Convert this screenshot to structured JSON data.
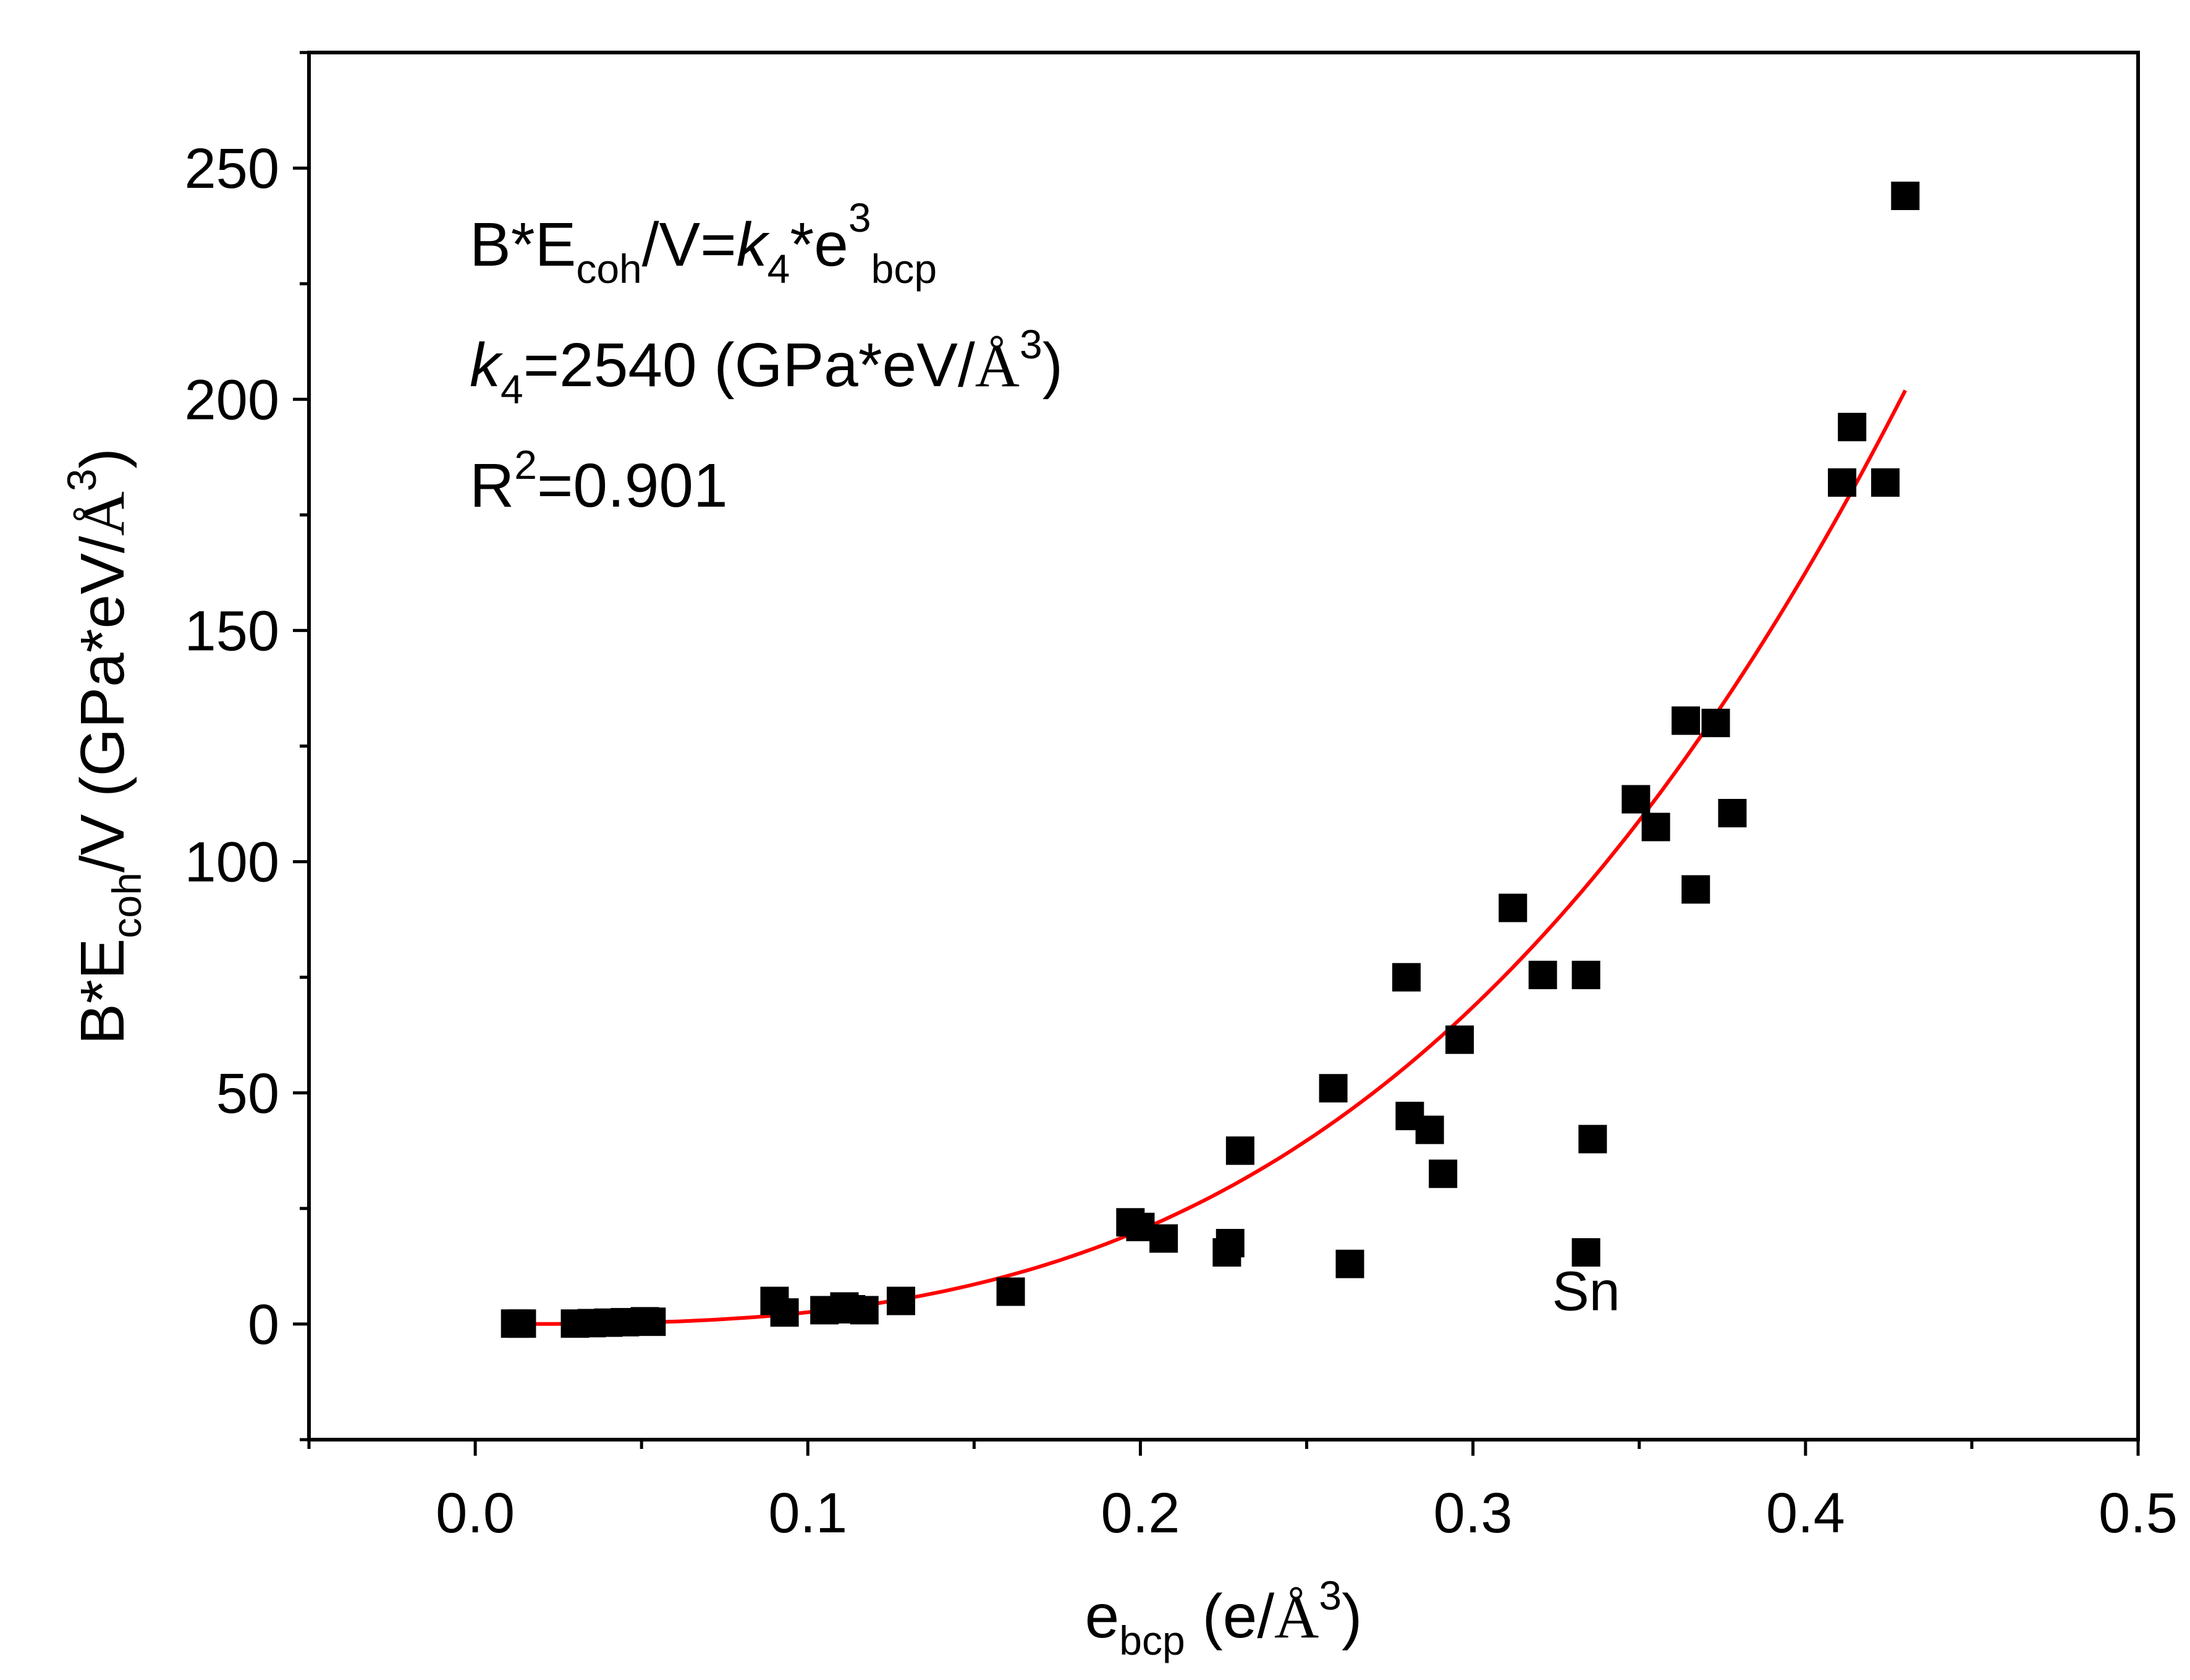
{
  "chart_data": {
    "type": "scatter",
    "title": "",
    "xlabel": {
      "main": "e",
      "sub": "bcp",
      "unit_open": " (e/",
      "angstrom": "Å",
      "sup": "3",
      "unit_close": ")"
    },
    "ylabel": {
      "main": "B*E",
      "sub": "coh",
      "mid": "/V (GPa*eV/",
      "angstrom": "Å",
      "sup": "3",
      "close": ")"
    },
    "xlim": [
      -0.05,
      0.5
    ],
    "ylim": [
      -25,
      275
    ],
    "x_ticks": [
      0.0,
      0.1,
      0.2,
      0.3,
      0.4,
      0.5
    ],
    "x_tick_labels": [
      "0.0",
      "0.1",
      "0.2",
      "0.3",
      "0.4",
      "0.5"
    ],
    "x_minor_ticks": [
      -0.05,
      0.05,
      0.15,
      0.25,
      0.35,
      0.45
    ],
    "y_ticks": [
      0,
      50,
      100,
      150,
      200,
      250
    ],
    "y_tick_labels": [
      "0",
      "50",
      "100",
      "150",
      "200",
      "250"
    ],
    "y_minor_ticks": [
      -25,
      25,
      75,
      125,
      175,
      225,
      275
    ],
    "grid": false,
    "series": [
      {
        "name": "data",
        "marker": "square",
        "color": "#000000",
        "points": [
          [
            0.012,
            0.1
          ],
          [
            0.014,
            0.1
          ],
          [
            0.03,
            0.1
          ],
          [
            0.035,
            0.2
          ],
          [
            0.04,
            0.3
          ],
          [
            0.045,
            0.4
          ],
          [
            0.051,
            0.6
          ],
          [
            0.053,
            0.5
          ],
          [
            0.09,
            5.0
          ],
          [
            0.093,
            2.5
          ],
          [
            0.105,
            3.0
          ],
          [
            0.111,
            3.8
          ],
          [
            0.113,
            3.2
          ],
          [
            0.117,
            3.0
          ],
          [
            0.128,
            5.0
          ],
          [
            0.161,
            7.0
          ],
          [
            0.197,
            22.0
          ],
          [
            0.2,
            21.0
          ],
          [
            0.207,
            18.5
          ],
          [
            0.226,
            15.5
          ],
          [
            0.227,
            17.5
          ],
          [
            0.23,
            37.5
          ],
          [
            0.258,
            51.0
          ],
          [
            0.263,
            13.0
          ],
          [
            0.28,
            75.0
          ],
          [
            0.281,
            45.0
          ],
          [
            0.287,
            42.0
          ],
          [
            0.291,
            32.5
          ],
          [
            0.296,
            61.5
          ],
          [
            0.312,
            90.0
          ],
          [
            0.321,
            75.5
          ],
          [
            0.334,
            75.5
          ],
          [
            0.334,
            15.5
          ],
          [
            0.336,
            40.0
          ],
          [
            0.349,
            113.5
          ],
          [
            0.355,
            107.5
          ],
          [
            0.364,
            130.5
          ],
          [
            0.367,
            94.0
          ],
          [
            0.373,
            130.0
          ],
          [
            0.378,
            110.5
          ],
          [
            0.411,
            182.0
          ],
          [
            0.414,
            194.0
          ],
          [
            0.424,
            182.0
          ],
          [
            0.43,
            244.0
          ]
        ]
      },
      {
        "name": "fit",
        "type": "line",
        "color": "#ff0000",
        "formula": "y = 2540 * x^3",
        "coefficient": 2540,
        "exponent": 3,
        "x_range": [
          0.012,
          0.43
        ]
      }
    ],
    "annotations": {
      "equation": {
        "lhs": "B*E",
        "lhs_sub": "coh",
        "lhs_rest": "/V=",
        "k": "k",
        "k_sub": "4",
        "rhs": "*e",
        "rhs_sub": "bcp",
        "rhs_sup": "3"
      },
      "k_value": {
        "k": "k",
        "k_sub": "4",
        "text": "=2540 (GPa*eV/",
        "angstrom": "Å",
        "sup": "3",
        "close": ")"
      },
      "r_squared": {
        "r": "R",
        "sup": "2",
        "text": "=0.901"
      },
      "point_label": {
        "text": "Sn",
        "x": 0.334,
        "y": 7
      }
    }
  }
}
